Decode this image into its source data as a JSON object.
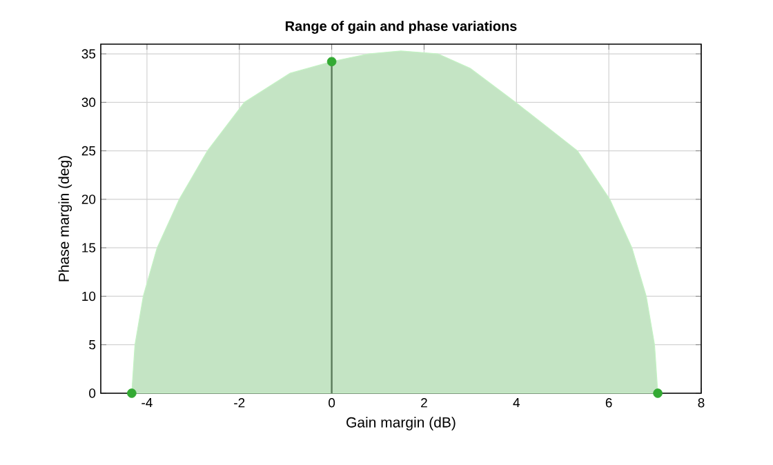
{
  "chart_data": {
    "type": "area",
    "title": "Range of gain and phase variations",
    "xlabel": "Gain margin (dB)",
    "ylabel": "Phase margin (deg)",
    "xlim": [
      -5,
      8
    ],
    "ylim": [
      0,
      36
    ],
    "xticks": [
      -4,
      -2,
      0,
      2,
      4,
      6,
      8
    ],
    "yticks": [
      0,
      5,
      10,
      15,
      20,
      25,
      30,
      35
    ],
    "grid": true,
    "series": [
      {
        "color": "#c4e4c4",
        "x": [
          -4.33,
          -4.26,
          -4.08,
          -3.78,
          -3.3,
          -2.69,
          -1.89,
          -0.9,
          0,
          0.8,
          1.5,
          2.3,
          3.0,
          3.98,
          5.32,
          6.02,
          6.5,
          6.81,
          6.99,
          7.06
        ],
        "values": [
          0,
          5,
          10,
          15,
          20,
          25,
          30,
          33,
          34.2,
          35.0,
          35.3,
          35.0,
          33.5,
          30,
          25,
          20,
          15,
          10,
          5,
          0
        ]
      },
      {
        "type": "line",
        "color": "#5a7a5a",
        "x": [
          0,
          0
        ],
        "values": [
          0,
          34.2
        ]
      },
      {
        "type": "scatter",
        "color": "#33aa33",
        "x": [
          -4.33,
          0,
          7.06
        ],
        "values": [
          0,
          34.2,
          0
        ]
      }
    ]
  }
}
